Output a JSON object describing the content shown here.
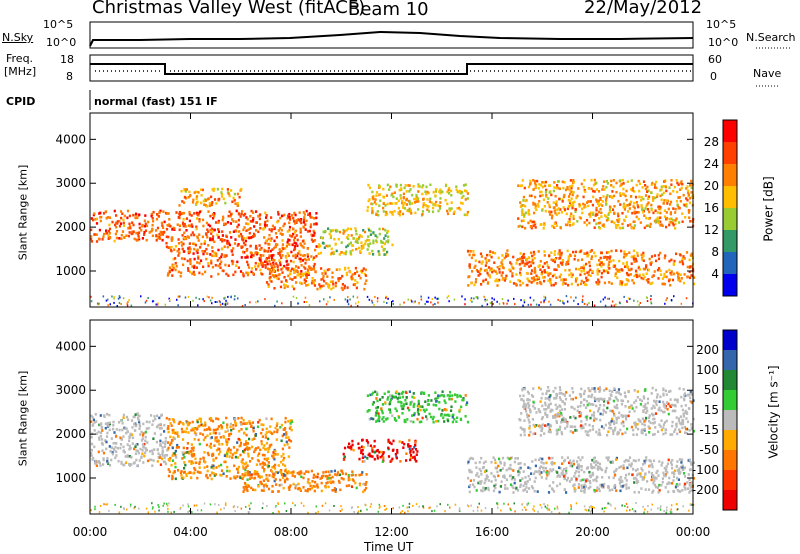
{
  "header": {
    "title": "Christmas Valley West (fitACF)",
    "beam": "Beam 10",
    "date": "22/May/2012"
  },
  "top_panels": {
    "nsky_label": "N.Sky",
    "nsky_ticks": [
      "10^5",
      "10^0"
    ],
    "nsearch_label": "N.Search",
    "freq_label_1": "Freq.",
    "freq_label_2": "[MHz]",
    "freq_ticks": [
      "18",
      "8"
    ],
    "nave_ticks": [
      "60",
      "0"
    ],
    "nave_label": "Nave",
    "cpid_label": "CPID",
    "cpid_value": "normal (fast) 151 IF"
  },
  "colorbars": {
    "power": {
      "label": "Power [dB]",
      "ticks": [
        "28",
        "24",
        "20",
        "16",
        "12",
        "8",
        "4"
      ],
      "colors": [
        "#ff0000",
        "#ff4000",
        "#ff7f00",
        "#ffbf00",
        "#99cc33",
        "#339966",
        "#2266bb",
        "#0000ee"
      ]
    },
    "velocity": {
      "label": "Velocity [m s⁻¹]",
      "ticks": [
        "200",
        "100",
        "50",
        "15",
        "-15",
        "-50",
        "-100",
        "-200"
      ],
      "colors": [
        "#0000cc",
        "#3366aa",
        "#228833",
        "#33cc33",
        "#bbbbbb",
        "#ffaa00",
        "#ff7700",
        "#ff3300",
        "#ee0000"
      ]
    }
  },
  "chart_data": [
    {
      "type": "heatmap",
      "title": "",
      "xlabel": "",
      "ylabel": "Slant Range [km]",
      "x_ticks": [
        "00:00",
        "04:00",
        "08:00",
        "12:00",
        "16:00",
        "20:00",
        "00:00"
      ],
      "y_ticks": [
        "1000",
        "2000",
        "3000",
        "4000"
      ],
      "xlim": [
        0,
        24
      ],
      "ylim": [
        180,
        4600
      ],
      "colorbar": "Power [dB]",
      "dominant_regions": [
        {
          "t": [
            0,
            3
          ],
          "range": [
            1700,
            2400
          ],
          "power_db": 28
        },
        {
          "t": [
            3,
            9
          ],
          "range": [
            900,
            2400
          ],
          "power_db": 28
        },
        {
          "t": [
            3.5,
            6
          ],
          "range": [
            2500,
            2900
          ],
          "power_db": 24
        },
        {
          "t": [
            7,
            11
          ],
          "range": [
            600,
            1100
          ],
          "power_db": 26
        },
        {
          "t": [
            9,
            12
          ],
          "range": [
            1400,
            2000
          ],
          "power_db": 20
        },
        {
          "t": [
            11,
            15
          ],
          "range": [
            2300,
            3000
          ],
          "power_db": 22
        },
        {
          "t": [
            15,
            24
          ],
          "range": [
            700,
            1500
          ],
          "power_db": 26
        },
        {
          "t": [
            17,
            24
          ],
          "range": [
            2000,
            3100
          ],
          "power_db": 24
        }
      ]
    },
    {
      "type": "heatmap",
      "title": "",
      "xlabel": "Time UT",
      "ylabel": "Slant Range [km]",
      "x_ticks": [
        "00:00",
        "04:00",
        "08:00",
        "12:00",
        "16:00",
        "20:00",
        "00:00"
      ],
      "y_ticks": [
        "1000",
        "2000",
        "3000",
        "4000"
      ],
      "xlim": [
        0,
        24
      ],
      "ylim": [
        180,
        4600
      ],
      "colorbar": "Velocity [m s⁻¹]",
      "dominant_regions": [
        {
          "t": [
            0,
            3
          ],
          "range": [
            1300,
            2500
          ],
          "velocity": 0
        },
        {
          "t": [
            3,
            8
          ],
          "range": [
            1000,
            2400
          ],
          "velocity": -50
        },
        {
          "t": [
            6,
            11
          ],
          "range": [
            700,
            1200
          ],
          "velocity": -60
        },
        {
          "t": [
            10,
            13
          ],
          "range": [
            1400,
            1900
          ],
          "velocity": -220
        },
        {
          "t": [
            11,
            15
          ],
          "range": [
            2300,
            3000
          ],
          "velocity": 30
        },
        {
          "t": [
            15,
            24
          ],
          "range": [
            700,
            1500
          ],
          "velocity": 0
        },
        {
          "t": [
            17,
            24
          ],
          "range": [
            2000,
            3100
          ],
          "velocity": 0
        }
      ]
    }
  ]
}
